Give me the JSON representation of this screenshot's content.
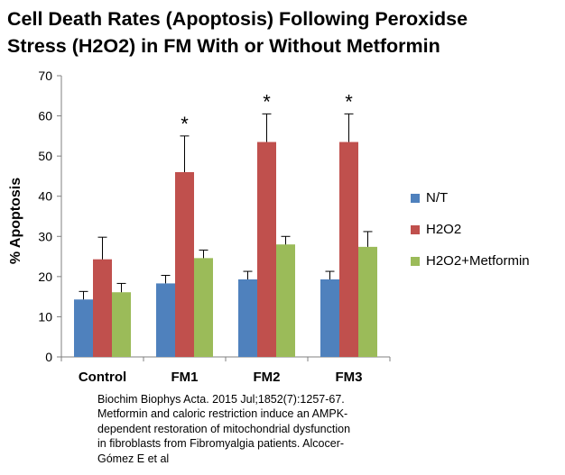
{
  "title_lines": [
    "Cell Death Rates (Apoptosis) Following Peroxidse",
    "Stress (H2O2) in FM With or Without Metformin"
  ],
  "caption_lines": [
    "Biochim Biophys Acta. 2015 Jul;1852(7):1257-67.",
    "Metformin and caloric restriction induce an AMPK-",
    "dependent restoration of mitochondrial dysfunction",
    "in fibroblasts from Fibromyalgia patients. Alcocer-",
    "Gómez E et al"
  ],
  "chart_data": {
    "type": "bar",
    "title": "Cell Death Rates (Apoptosis) Following Peroxidse Stress (H2O2) in FM With or Without Metformin",
    "xlabel": "",
    "ylabel": "% Apoptosis",
    "ylim": [
      0,
      70
    ],
    "yticks": [
      0,
      10,
      20,
      30,
      40,
      50,
      60,
      70
    ],
    "categories": [
      "Control",
      "FM1",
      "FM2",
      "FM3"
    ],
    "series": [
      {
        "name": "N/T",
        "color": "#4f81bd",
        "values": [
          14.3,
          18.3,
          19.3,
          19.3
        ],
        "errors": [
          2.0,
          2.0,
          2.0,
          2.0
        ]
      },
      {
        "name": "H2O2",
        "color": "#c0504d",
        "values": [
          24.3,
          46.0,
          53.5,
          53.5
        ],
        "errors": [
          5.5,
          9.0,
          7.0,
          7.0
        ]
      },
      {
        "name": "H2O2+Metformin",
        "color": "#9bbb59",
        "values": [
          16.1,
          24.6,
          28.0,
          27.4
        ],
        "errors": [
          2.2,
          2.0,
          2.0,
          3.8
        ]
      }
    ],
    "annotations": [
      {
        "category": "FM1",
        "series": "H2O2",
        "text": "*"
      },
      {
        "category": "FM2",
        "series": "H2O2",
        "text": "*"
      },
      {
        "category": "FM3",
        "series": "H2O2",
        "text": "*"
      }
    ],
    "error_bars": "upper",
    "legend_position": "right",
    "grid": false
  }
}
